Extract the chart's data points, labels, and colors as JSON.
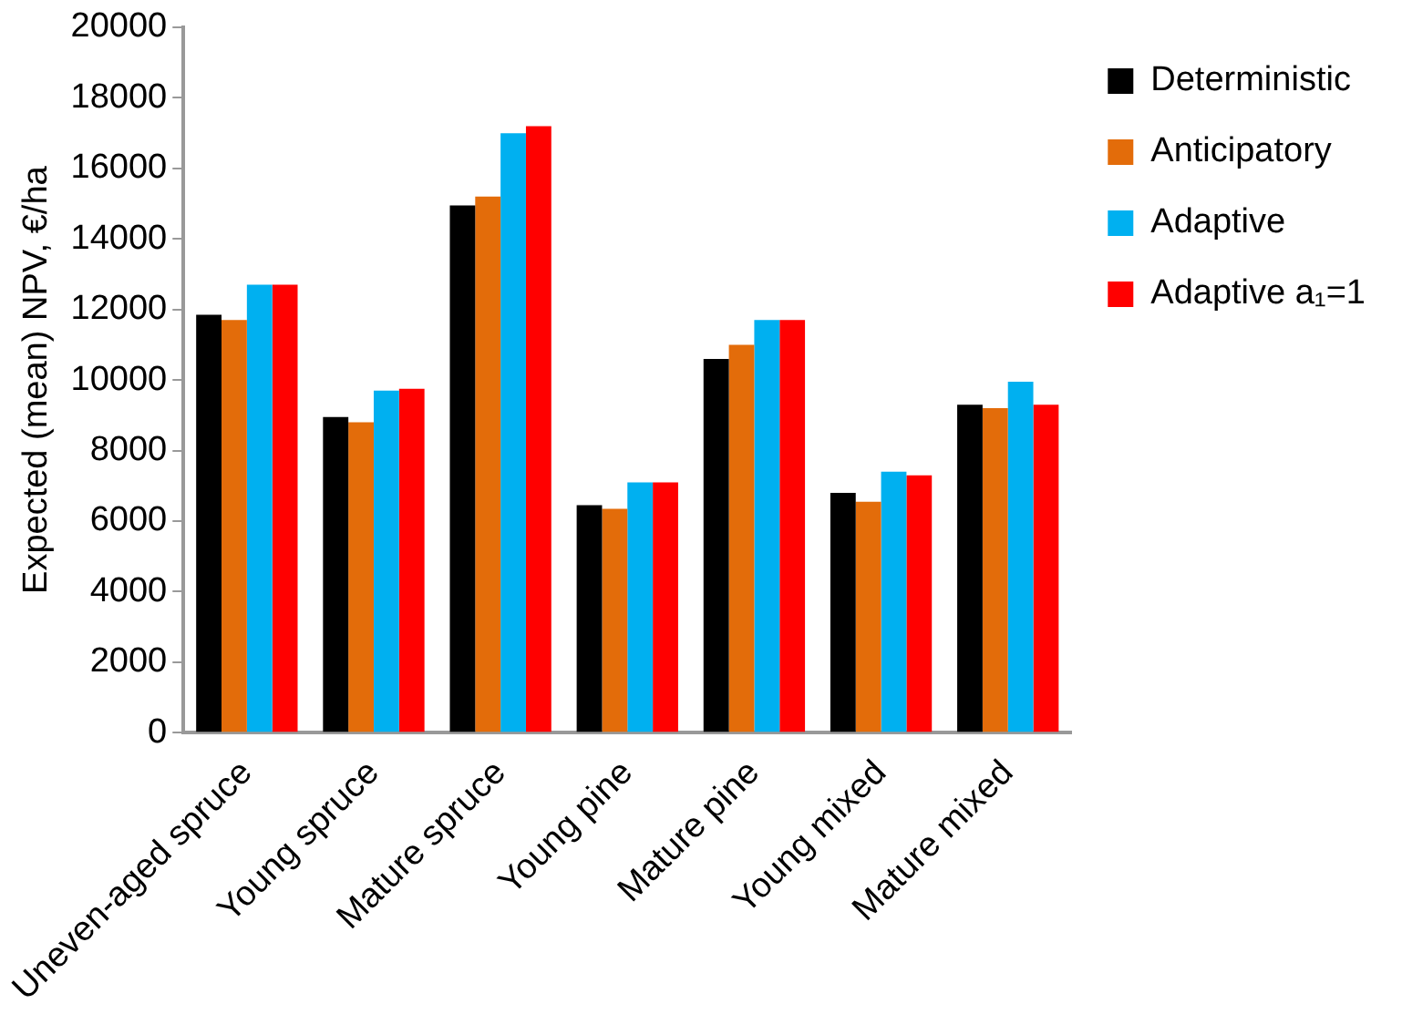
{
  "chart_data": {
    "type": "bar",
    "ylabel": "Expected (mean) NPV, €/ha",
    "categories": [
      "Uneven-aged spruce",
      "Young spruce",
      "Mature spruce",
      "Young pine",
      "Mature pine",
      "Young mixed",
      "Mature mixed"
    ],
    "series": [
      {
        "name": "Deterministic",
        "color": "#000000",
        "values": [
          11850,
          8950,
          14950,
          6450,
          10600,
          6800,
          9300
        ]
      },
      {
        "name": "Anticipatory",
        "color": "#e36c0a",
        "values": [
          11700,
          8800,
          15200,
          6350,
          11000,
          6550,
          9200
        ]
      },
      {
        "name": "Adaptive",
        "color": "#00b0f0",
        "values": [
          12700,
          9700,
          17000,
          7100,
          11700,
          7400,
          9950
        ]
      },
      {
        "name": "Adaptive a₁=1",
        "color": "#ff0000",
        "values": [
          12700,
          9750,
          17200,
          7100,
          11700,
          7300,
          9300
        ]
      }
    ],
    "ylim": [
      0,
      20000
    ],
    "yticks": [
      0,
      2000,
      4000,
      6000,
      8000,
      10000,
      12000,
      14000,
      16000,
      18000,
      20000
    ],
    "grid": false,
    "legend": "right"
  }
}
